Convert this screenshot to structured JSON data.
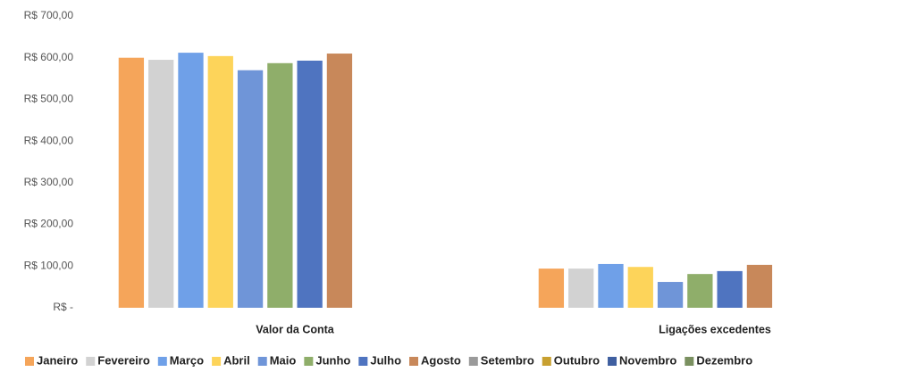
{
  "chart_data": {
    "type": "bar",
    "categories": [
      "Valor da Conta",
      "Ligações excedentes"
    ],
    "series": [
      {
        "name": "Janeiro",
        "color": "#f5a55a",
        "values": [
          600,
          94
        ]
      },
      {
        "name": "Fevereiro",
        "color": "#d2d2d2",
        "values": [
          595,
          94
        ]
      },
      {
        "name": "Março",
        "color": "#6fa0e8",
        "values": [
          612,
          105
        ]
      },
      {
        "name": "Abril",
        "color": "#fdd45a",
        "values": [
          604,
          98
        ]
      },
      {
        "name": "Maio",
        "color": "#6f95d8",
        "values": [
          570,
          62
        ]
      },
      {
        "name": "Junho",
        "color": "#8fae6a",
        "values": [
          587,
          81
        ]
      },
      {
        "name": "Julho",
        "color": "#4f74c0",
        "values": [
          593,
          88
        ]
      },
      {
        "name": "Agosto",
        "color": "#c8885a",
        "values": [
          610,
          103
        ]
      },
      {
        "name": "Setembro",
        "color": "#9a9a9a",
        "values": [
          null,
          null
        ]
      },
      {
        "name": "Outubro",
        "color": "#c8a030",
        "values": [
          null,
          null
        ]
      },
      {
        "name": "Novembro",
        "color": "#3f5fa0",
        "values": [
          null,
          null
        ]
      },
      {
        "name": "Dezembro",
        "color": "#7a9060",
        "values": [
          null,
          null
        ]
      }
    ],
    "ylim": [
      0,
      700
    ],
    "yticks": [
      {
        "value": 0,
        "label": "R$ -"
      },
      {
        "value": 100,
        "label": "R$ 100,00"
      },
      {
        "value": 200,
        "label": "R$ 200,00"
      },
      {
        "value": 300,
        "label": "R$ 300,00"
      },
      {
        "value": 400,
        "label": "R$ 400,00"
      },
      {
        "value": 500,
        "label": "R$ 500,00"
      },
      {
        "value": 600,
        "label": "R$ 600,00"
      },
      {
        "value": 700,
        "label": "R$ 700,00"
      }
    ],
    "grid": false,
    "legend": "bottom"
  }
}
